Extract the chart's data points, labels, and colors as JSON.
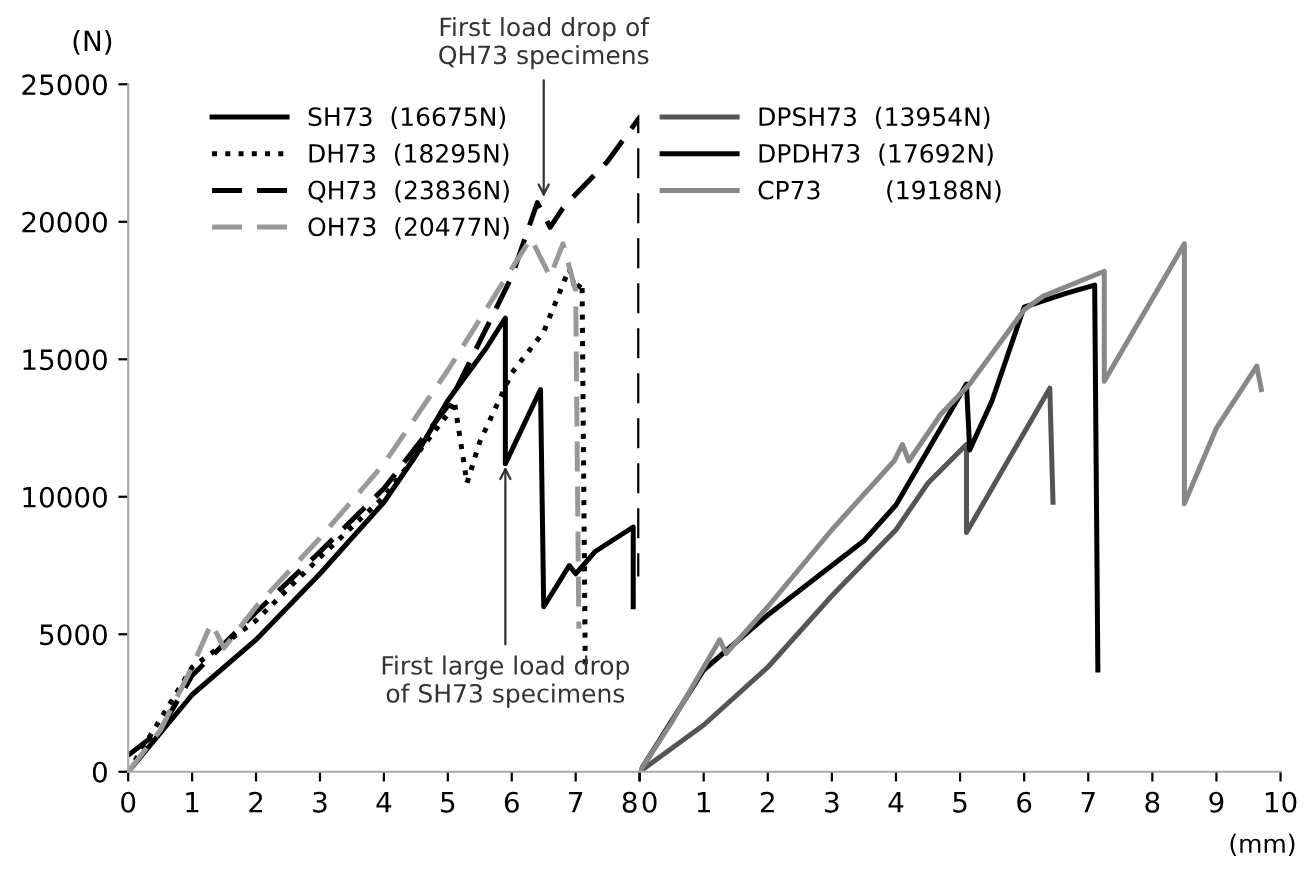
{
  "chart_data": [
    {
      "type": "line",
      "ylabel": "(N)",
      "xlim": [
        0,
        8
      ],
      "xticks": [
        0,
        1,
        2,
        3,
        4,
        5,
        6,
        7,
        8
      ],
      "ylim": [
        0,
        25000
      ],
      "yticks": [
        0,
        5000,
        10000,
        15000,
        20000,
        25000
      ],
      "legend": "top left",
      "grid": false,
      "tick_labels": "xy",
      "annotations": [
        {
          "text": "First load drop of\nQH73 specimens",
          "x": 6.5,
          "y": 20700
        },
        {
          "text": "First large load drop\nof SH73 specimens",
          "x": 5.9,
          "y": 11300
        }
      ],
      "series": [
        {
          "name": "SH73  (16675N)",
          "color": "#000000",
          "line_style": "solid",
          "x": [
            0,
            1,
            2,
            3,
            4,
            4.5,
            5,
            5.6,
            5.9,
            5.9,
            6.45,
            6.5,
            6.9,
            7.0,
            7.3,
            7.9,
            7.9
          ],
          "values": [
            0,
            2800,
            4800,
            7200,
            9800,
            11500,
            13500,
            15400,
            16500,
            11200,
            13900,
            6000,
            7500,
            7200,
            8000,
            8900,
            6000
          ]
        },
        {
          "name": "DH73  (18295N)",
          "color": "#000000",
          "line_style": "dotted",
          "x": [
            0,
            1,
            2,
            3,
            4,
            5,
            5.1,
            5.3,
            5.5,
            6,
            6.5,
            6.9,
            7.0,
            7.1,
            7.15
          ],
          "values": [
            0,
            3800,
            5500,
            7800,
            10000,
            13000,
            13500,
            10500,
            12000,
            14500,
            16000,
            18300,
            17500,
            17800,
            3800
          ]
        },
        {
          "name": "QH73  (23836N)",
          "color": "#000000",
          "line_style": "dashed",
          "x": [
            0,
            0.5,
            1,
            2,
            3,
            4,
            5,
            6,
            6.4,
            6.6,
            6.8,
            7,
            7.5,
            8,
            8
          ],
          "values": [
            600,
            1500,
            3500,
            5800,
            8000,
            10300,
            13300,
            18000,
            20700,
            19800,
            20500,
            21000,
            22200,
            23800,
            7100
          ]
        },
        {
          "name": "OH73  (20477N)",
          "color": "#999999",
          "line_style": "dashed",
          "x": [
            0,
            0.5,
            1,
            1.3,
            1.5,
            2,
            3,
            4,
            5,
            6,
            6.3,
            6.6,
            6.8,
            7.0,
            7.05
          ],
          "values": [
            0,
            1500,
            3800,
            5400,
            4500,
            6000,
            8500,
            11200,
            14600,
            18300,
            19400,
            18000,
            19200,
            17500,
            5200
          ]
        }
      ]
    },
    {
      "type": "line",
      "xlabel": "(mm)",
      "xlim": [
        0,
        10
      ],
      "xticks": [
        0,
        1,
        2,
        3,
        4,
        5,
        6,
        7,
        8,
        9,
        10
      ],
      "ylim": [
        0,
        25000
      ],
      "legend": "top left",
      "grid": false,
      "tick_labels": "x",
      "series": [
        {
          "name": "DPSH73  (13954N)",
          "color": "#555555",
          "line_style": "solid",
          "x": [
            0,
            1,
            2,
            3,
            4,
            4.5,
            5.1,
            5.1,
            6.4,
            6.45
          ],
          "values": [
            0,
            1700,
            3800,
            6400,
            8800,
            10500,
            11900,
            8700,
            13950,
            9800
          ]
        },
        {
          "name": "DPDH73  (17692N)",
          "color": "#000000",
          "line_style": "solid",
          "x": [
            0,
            1,
            1.3,
            2,
            3,
            3.5,
            4,
            4.5,
            5.1,
            5.15,
            5.5,
            6.0,
            6.65,
            7.1,
            7.15
          ],
          "values": [
            0,
            3700,
            4300,
            5700,
            7500,
            8400,
            9700,
            11700,
            14100,
            11700,
            13500,
            16900,
            17400,
            17700,
            3700
          ]
        },
        {
          "name": "CP73        (19188N)",
          "color": "#888888",
          "line_style": "solid",
          "x": [
            0,
            0.5,
            1,
            1.25,
            1.35,
            2,
            3,
            3.97,
            4.1,
            4.2,
            4.7,
            5.15,
            6.0,
            6.3,
            7.25,
            7.25,
            8.5,
            8.5,
            9.0,
            9.63,
            9.7
          ],
          "values": [
            0,
            1800,
            3800,
            4800,
            4300,
            6000,
            8800,
            11300,
            11900,
            11300,
            13000,
            14100,
            16800,
            17300,
            18200,
            14200,
            19200,
            9750,
            12500,
            14750,
            13900
          ]
        }
      ]
    }
  ]
}
